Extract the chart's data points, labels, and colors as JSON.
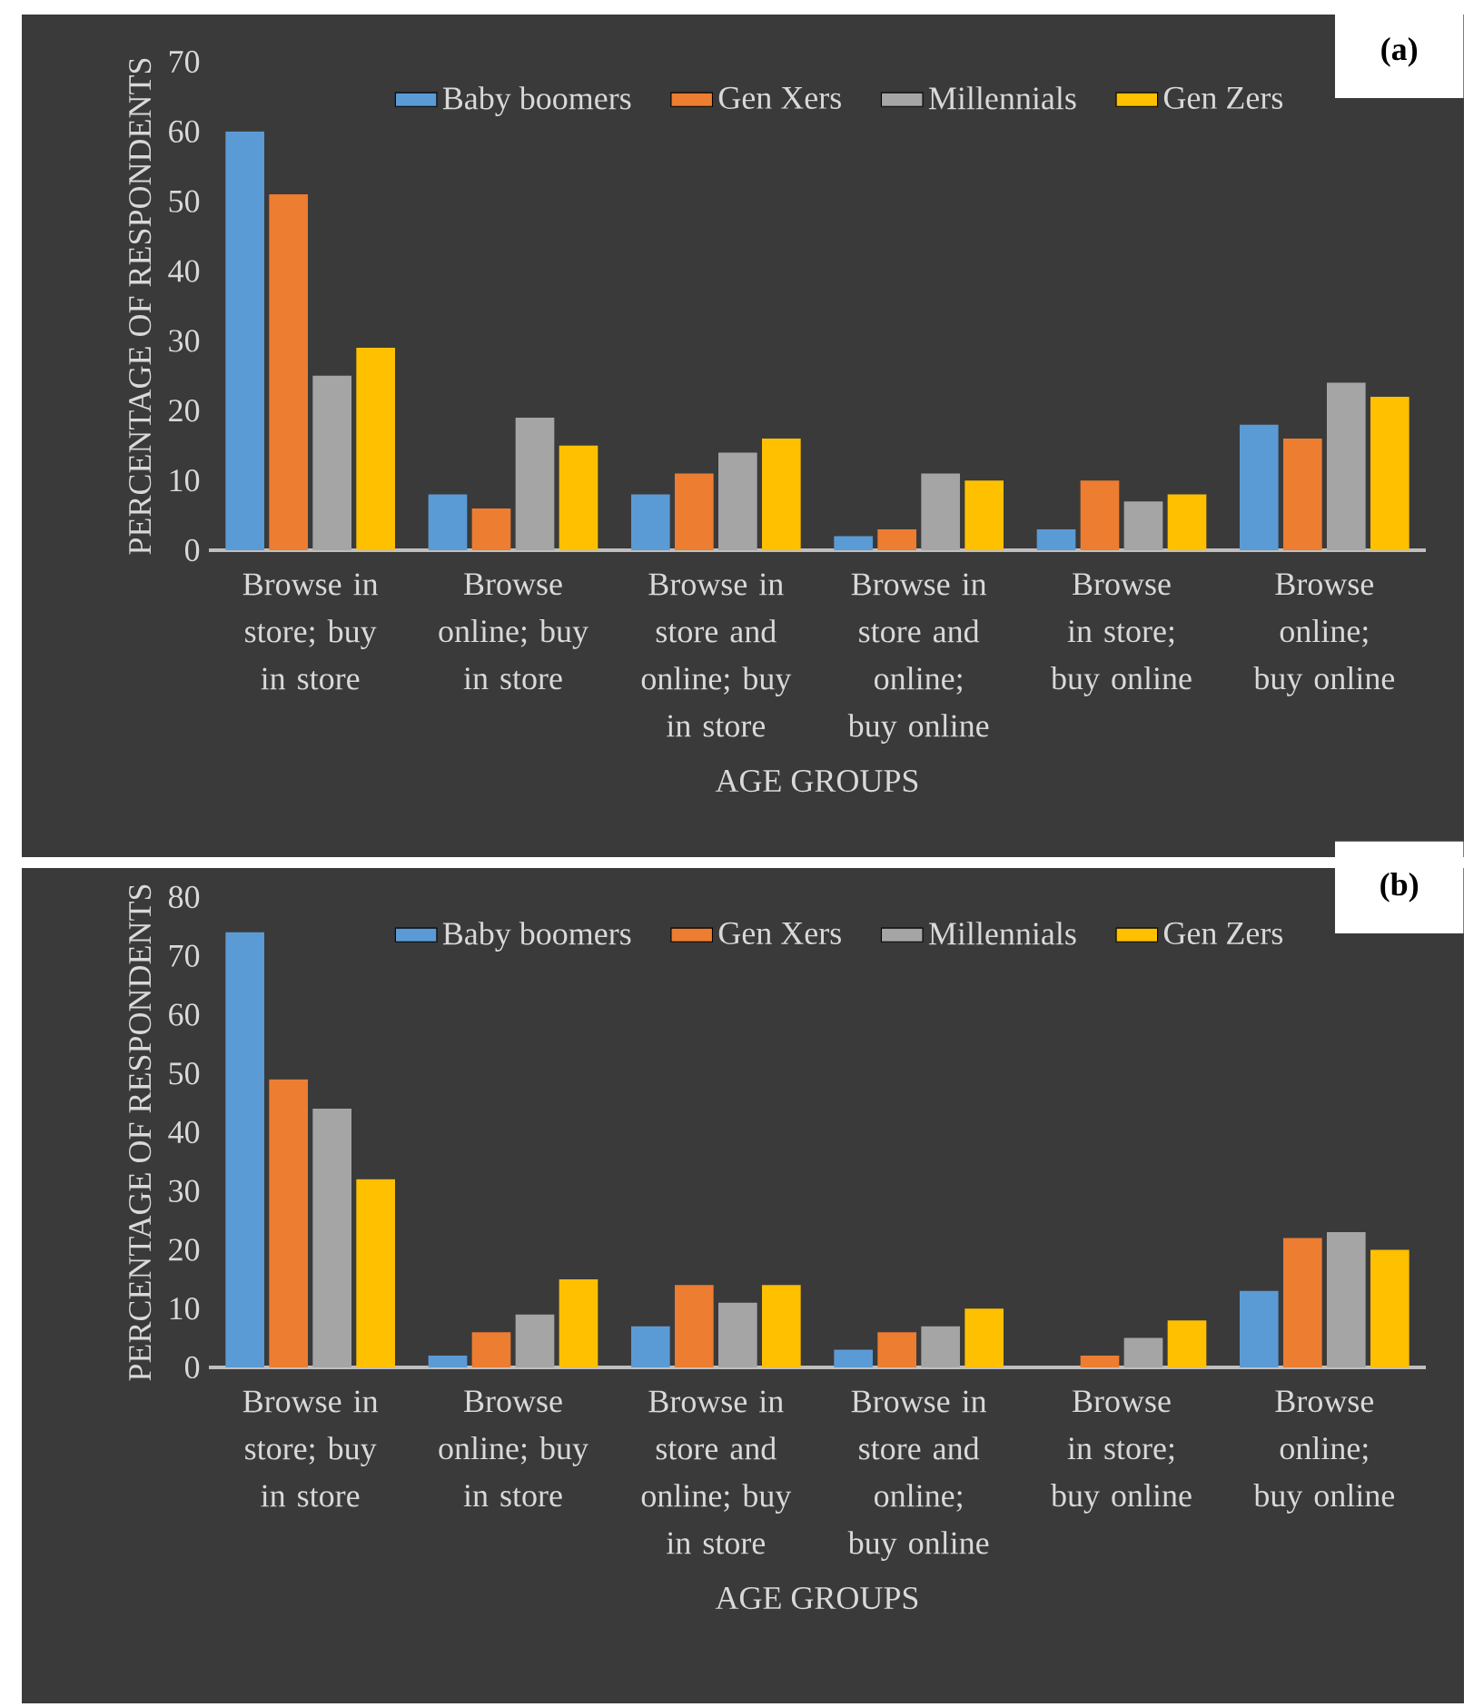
{
  "chart_data": [
    {
      "type": "bar",
      "title": "(a)",
      "xlabel": "AGE GROUPS",
      "ylabel": "PERCENTAGE OF RESPONDENTS",
      "categories": [
        "Browse in store; buy in store",
        "Browse online; buy in store",
        "Browse in store and online; buy in store",
        "Browse in store and online; buy online",
        "Browse in store; buy online",
        "Browse online; buy online"
      ],
      "series": [
        {
          "name": "Baby boomers",
          "color": "#5b9bd5",
          "values": [
            60,
            8,
            8,
            2,
            3,
            18
          ]
        },
        {
          "name": "Gen Xers",
          "color": "#ed7d31",
          "values": [
            51,
            6,
            11,
            3,
            10,
            16
          ]
        },
        {
          "name": "Millennials",
          "color": "#a5a5a5",
          "values": [
            25,
            19,
            14,
            11,
            7,
            24
          ]
        },
        {
          "name": "Gen Zers",
          "color": "#ffc000",
          "values": [
            29,
            15,
            16,
            10,
            8,
            22
          ]
        }
      ],
      "ylim": [
        0,
        70
      ],
      "yticks": [
        0,
        10,
        20,
        30,
        40,
        50,
        60,
        70
      ],
      "legend": "top",
      "grid": false
    },
    {
      "type": "bar",
      "title": "(b)",
      "xlabel": "AGE GROUPS",
      "ylabel": "PERCENTAGE OF RESPONDENTS",
      "categories": [
        "Browse in store; buy in store",
        "Browse online; buy in store",
        "Browse in store and online; buy in store",
        "Browse in store and online; buy online",
        "Browse in store; buy online",
        "Browse online; buy online"
      ],
      "series": [
        {
          "name": "Baby boomers",
          "color": "#5b9bd5",
          "values": [
            74,
            2,
            7,
            3,
            0,
            13
          ]
        },
        {
          "name": "Gen Xers",
          "color": "#ed7d31",
          "values": [
            49,
            6,
            14,
            6,
            2,
            22
          ]
        },
        {
          "name": "Millennials",
          "color": "#a5a5a5",
          "values": [
            44,
            9,
            11,
            7,
            5,
            23
          ]
        },
        {
          "name": "Gen Zers",
          "color": "#ffc000",
          "values": [
            32,
            15,
            14,
            10,
            8,
            20
          ]
        }
      ],
      "ylim": [
        0,
        80
      ],
      "yticks": [
        0,
        10,
        20,
        30,
        40,
        50,
        60,
        70,
        80
      ],
      "legend": "top",
      "grid": false
    }
  ]
}
